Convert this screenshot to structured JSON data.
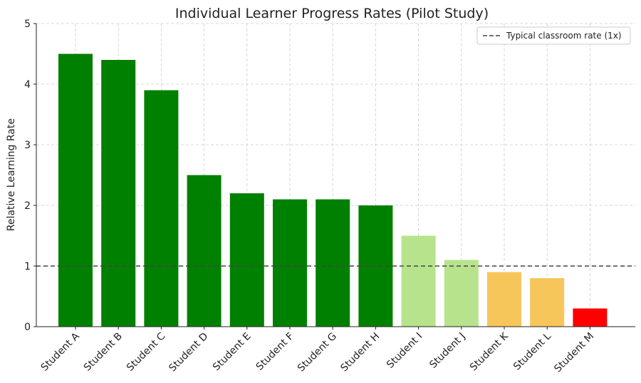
{
  "chart_data": {
    "type": "bar",
    "title": "Individual Learner Progress Rates (Pilot Study)",
    "xlabel": "",
    "ylabel": "Relative Learning Rate",
    "ylim": [
      0,
      5
    ],
    "yticks": [
      0,
      1,
      2,
      3,
      4,
      5
    ],
    "grid": true,
    "legend_position": "top-right",
    "categories": [
      "Student A",
      "Student B",
      "Student C",
      "Student D",
      "Student E",
      "Student F",
      "Student G",
      "Student H",
      "Student I",
      "Student J",
      "Student K",
      "Student L",
      "Student M"
    ],
    "values": [
      4.5,
      4.4,
      3.9,
      2.5,
      2.2,
      2.1,
      2.1,
      2.0,
      1.5,
      1.1,
      0.9,
      0.8,
      0.3
    ],
    "bar_colors": [
      "#008000",
      "#008000",
      "#008000",
      "#008000",
      "#008000",
      "#008000",
      "#008000",
      "#008000",
      "#b7e38c",
      "#b7e38c",
      "#f7c65a",
      "#f7c65a",
      "#ff0000"
    ],
    "reference_line": {
      "label": "Typical classroom rate (1x)",
      "value": 1,
      "color": "#444444",
      "style": "dashed"
    }
  }
}
